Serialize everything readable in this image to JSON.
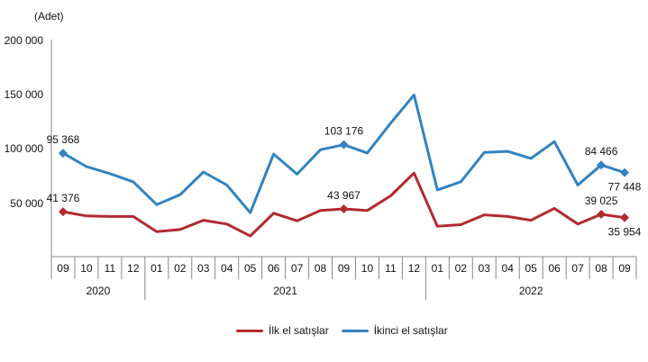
{
  "chart_data": {
    "type": "line",
    "unit_label": "(Adet)",
    "y_ticks": [
      "200 000",
      "150 000",
      "100 000",
      "50 000"
    ],
    "ylim": [
      0,
      200000
    ],
    "grid": false,
    "legend_position": "bottom",
    "categories": [
      "09",
      "10",
      "11",
      "12",
      "01",
      "02",
      "03",
      "04",
      "05",
      "06",
      "07",
      "08",
      "09",
      "10",
      "11",
      "12",
      "01",
      "02",
      "03",
      "04",
      "05",
      "06",
      "07",
      "08",
      "09"
    ],
    "years": [
      {
        "label": "2020",
        "span": 4
      },
      {
        "label": "2021",
        "span": 12
      },
      {
        "label": "2022",
        "span": 9
      }
    ],
    "series": [
      {
        "name": "İlk el satışlar",
        "color": "#b22a2e",
        "values": [
          41376,
          37500,
          37000,
          37000,
          23000,
          25000,
          33500,
          30000,
          19000,
          40000,
          33000,
          42500,
          43967,
          42500,
          56000,
          77000,
          28000,
          29500,
          38500,
          37000,
          33500,
          44500,
          30000,
          39025,
          35954
        ]
      },
      {
        "name": "İkinci el satışlar",
        "color": "#3283c0",
        "values": [
          95368,
          83000,
          76500,
          69000,
          48000,
          57000,
          78000,
          66000,
          40500,
          94500,
          76000,
          98500,
          103176,
          95500,
          123000,
          149000,
          61500,
          69000,
          96000,
          97000,
          90500,
          106000,
          66000,
          84466,
          77448
        ]
      }
    ],
    "annotations": [
      {
        "series": 0,
        "index": 0,
        "text": "41 376",
        "pos": "above"
      },
      {
        "series": 0,
        "index": 12,
        "text": "43 967",
        "pos": "above"
      },
      {
        "series": 0,
        "index": 23,
        "text": "39 025",
        "pos": "above"
      },
      {
        "series": 0,
        "index": 24,
        "text": "35 954",
        "pos": "below"
      },
      {
        "series": 1,
        "index": 0,
        "text": "95 368",
        "pos": "above"
      },
      {
        "series": 1,
        "index": 12,
        "text": "103 176",
        "pos": "above"
      },
      {
        "series": 1,
        "index": 23,
        "text": "84 466",
        "pos": "above"
      },
      {
        "series": 1,
        "index": 24,
        "text": "77 448",
        "pos": "below"
      }
    ]
  }
}
